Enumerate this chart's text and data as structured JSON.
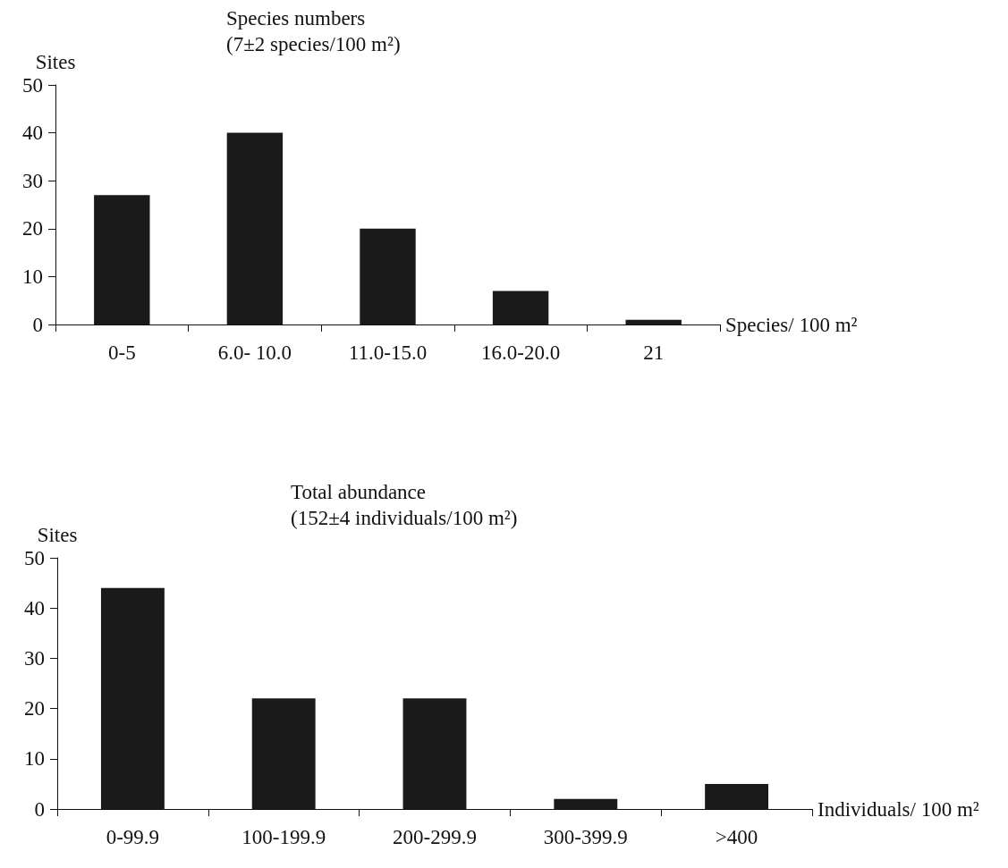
{
  "chart_data": [
    {
      "type": "bar",
      "title": "Species numbers",
      "subtitle": "(7±2 species/100 m²)",
      "ylabel": "Sites",
      "xlabel": "Species/ 100 m²",
      "categories": [
        "0-5",
        "6.0- 10.0",
        "11.0-15.0",
        "16.0-20.0",
        "21"
      ],
      "values": [
        27,
        40,
        20,
        7,
        1
      ],
      "color": "#1a1a1a",
      "ylim": [
        0,
        50
      ],
      "yticks": [
        0,
        10,
        20,
        30,
        40,
        50
      ],
      "grid": false
    },
    {
      "type": "bar",
      "title": "Total abundance",
      "subtitle": "(152±4 individuals/100 m²)",
      "ylabel": "Sites",
      "xlabel": "Individuals/ 100 m²",
      "categories": [
        "0-99.9",
        "100-199.9",
        "200-299.9",
        "300-399.9",
        ">400"
      ],
      "values": [
        44,
        22,
        22,
        2,
        5
      ],
      "color": "#1a1a1a",
      "ylim": [
        0,
        50
      ],
      "yticks": [
        0,
        10,
        20,
        30,
        40,
        50
      ],
      "grid": false
    }
  ]
}
